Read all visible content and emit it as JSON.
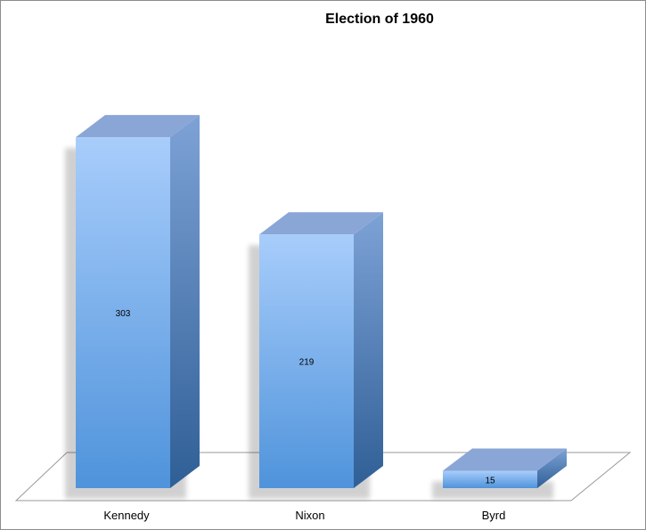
{
  "chart_data": {
    "type": "bar",
    "title": "Election of 1960",
    "categories": [
      "Kennedy",
      "Nixon",
      "Byrd"
    ],
    "values": [
      303,
      219,
      15
    ],
    "data_labels": [
      "303",
      "219",
      "15"
    ],
    "xlabel": "",
    "ylabel": "",
    "ylim": [
      0,
      350
    ],
    "style": "3d-column",
    "grid": false,
    "legend": "none",
    "colors": {
      "front_top": "#a8cdfb",
      "front_bottom": "#4f93db",
      "side_top": "#7da2d6",
      "side_bottom": "#2f5f96",
      "top": "#8aa6d6",
      "floor_stroke": "#9a9a9a"
    }
  }
}
